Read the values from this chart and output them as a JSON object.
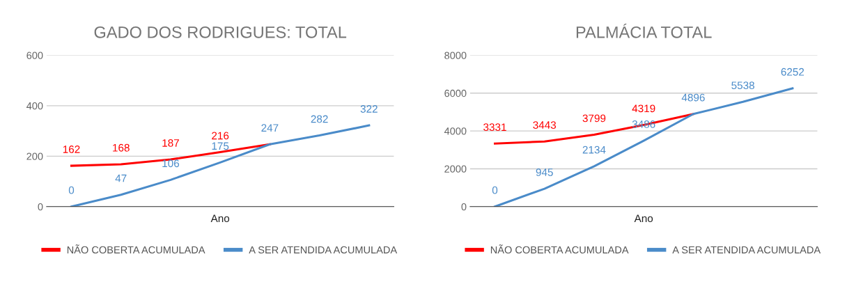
{
  "chart_data": [
    {
      "type": "line",
      "title": "GADO DOS RODRIGUES: TOTAL",
      "xlabel": "Ano",
      "categories": [
        null,
        null,
        null,
        null,
        null,
        null,
        null
      ],
      "series": [
        {
          "name": "NÃO COBERTA ACUMULADA",
          "color": "#ff0000",
          "values": [
            162,
            168,
            187,
            216,
            247,
            null,
            null
          ],
          "value_labels": [
            "162",
            "168",
            "187",
            "216",
            null,
            null,
            null
          ]
        },
        {
          "name": "A SER ATENDIDA ACUMULADA",
          "color": "#4a8bc9",
          "values": [
            0,
            47,
            106,
            175,
            247,
            282,
            322
          ],
          "value_labels": [
            "0",
            "47",
            "106",
            "175",
            "247",
            "282",
            "322"
          ]
        }
      ],
      "ylim": [
        0,
        600
      ],
      "yticks": [
        0,
        200,
        400,
        600
      ],
      "grid": "y",
      "legend": "bottom",
      "tick_labels": "y",
      "marker": "none",
      "line_style": "solid"
    },
    {
      "type": "line",
      "title": "PALMÁCIA TOTAL",
      "xlabel": "Ano",
      "categories": [
        null,
        null,
        null,
        null,
        null,
        null,
        null
      ],
      "series": [
        {
          "name": "NÃO COBERTA ACUMULADA",
          "color": "#ff0000",
          "values": [
            3331,
            3443,
            3799,
            4319,
            4896,
            null,
            null
          ],
          "value_labels": [
            "3331",
            "3443",
            "3799",
            "4319",
            null,
            null,
            null
          ]
        },
        {
          "name": "A SER ATENDIDA ACUMULADA",
          "color": "#4a8bc9",
          "values": [
            0,
            945,
            2134,
            3486,
            4896,
            5538,
            6252
          ],
          "value_labels": [
            "0",
            "945",
            "2134",
            "3486",
            "4896",
            "5538",
            "6252"
          ]
        }
      ],
      "ylim": [
        0,
        8000
      ],
      "yticks": [
        0,
        2000,
        4000,
        6000,
        8000
      ],
      "grid": "y",
      "legend": "bottom",
      "tick_labels": "y",
      "marker": "none",
      "line_style": "solid"
    }
  ]
}
